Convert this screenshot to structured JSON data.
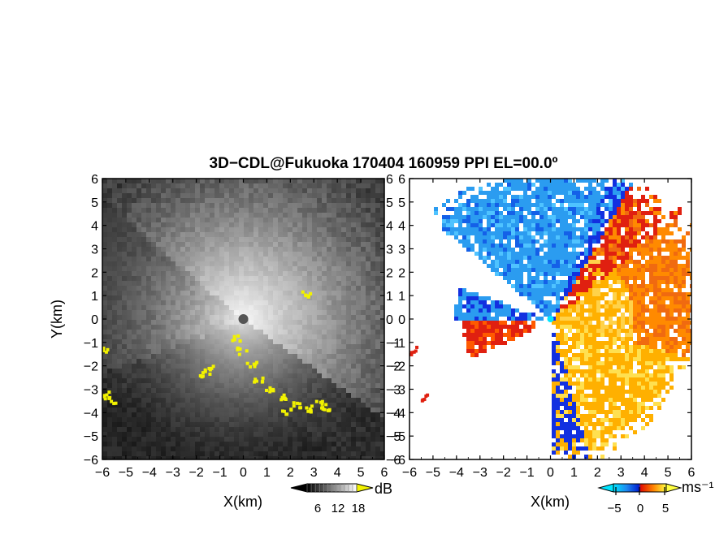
{
  "title": "3D−CDL@Fukuoka 170404 160959 PPI EL=00.0º",
  "chart_data": [
    {
      "type": "heatmap",
      "quantity": "reflectivity",
      "xlabel": "X(km)",
      "ylabel": "Y(km)",
      "xlim": [
        -6,
        6
      ],
      "ylim": [
        -6,
        6
      ],
      "x_ticks": [
        "−6",
        "−5",
        "−4",
        "−3",
        "−2",
        "−1",
        "0",
        "1",
        "2",
        "3",
        "4",
        "5",
        "6"
      ],
      "y_ticks": [
        "6",
        "5",
        "4",
        "3",
        "2",
        "1",
        "0",
        "−1",
        "−2",
        "−3",
        "−4",
        "−5",
        "−6"
      ],
      "colorbar": {
        "unit": "dB",
        "ticks": [
          "6",
          "12",
          "18"
        ],
        "range": [
          0,
          24
        ],
        "colormap": "grayscale",
        "extend_color": "#f2f200"
      },
      "features": {
        "bright_sector_deg": [
          -35,
          35
        ],
        "blocked_sector_deg": [
          140,
          200
        ],
        "masked_sector_deg": [
          210,
          300
        ],
        "ground_clutter_color": "#f2f200"
      }
    },
    {
      "type": "heatmap",
      "quantity": "doppler_velocity",
      "xlabel": "X(km)",
      "xlim": [
        -6,
        6
      ],
      "ylim": [
        -6,
        6
      ],
      "x_ticks": [
        "−6",
        "−5",
        "−4",
        "−3",
        "−2",
        "−1",
        "0",
        "1",
        "2",
        "3",
        "4",
        "5",
        "6"
      ],
      "y_ticks": [
        "6",
        "5",
        "4",
        "3",
        "2",
        "1",
        "0",
        "−1",
        "−2",
        "−3",
        "−4",
        "−5",
        "−6"
      ],
      "colorbar": {
        "unit": "ms⁻¹",
        "ticks": [
          "−5",
          "0",
          "5"
        ],
        "range": [
          -8,
          8
        ],
        "colormap": "cyan-blue-red-orange-yellow"
      },
      "features": {
        "receding_color": "#ff9a00",
        "approaching_color": "#2b9cf0",
        "folding_edge_colors": [
          "#1230e0",
          "#e02010"
        ]
      }
    }
  ]
}
